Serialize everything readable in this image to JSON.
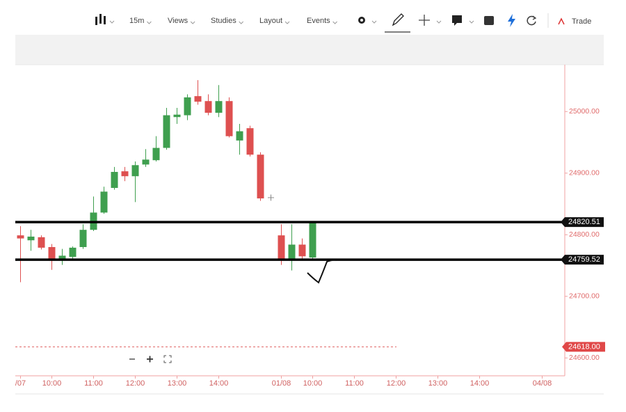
{
  "toolbar": {
    "items": [
      "15m",
      "Views",
      "Studies",
      "Layout",
      "Events"
    ],
    "trade": "Trade"
  },
  "chart_data": {
    "type": "candlestick",
    "categories": [
      "/07",
      null,
      null,
      "10:00",
      null,
      null,
      null,
      "11:00",
      null,
      null,
      null,
      "12:00",
      null,
      null,
      null,
      "13:00",
      null,
      null,
      null,
      "14:00",
      null,
      null,
      null,
      null,
      null,
      "01/08",
      null,
      null,
      "10:00",
      null,
      null,
      null,
      "11:00",
      null,
      null,
      null,
      "12:00",
      null,
      null,
      null,
      "13:00",
      null,
      null,
      null,
      "14:00",
      null,
      null,
      null,
      null,
      null,
      "04/08",
      null,
      null
    ],
    "open": [
      24799,
      24791,
      24796,
      24780,
      24759,
      24764,
      24780,
      24808,
      24836,
      24876,
      24903,
      24895,
      24914,
      24921,
      24941,
      24991,
      24994,
      25025,
      25017,
      24998,
      25017,
      24953,
      24973,
      24930,
      null,
      24799,
      24760,
      24784,
      24763,
      null,
      null,
      null,
      null,
      null,
      null,
      null,
      null,
      null,
      null,
      null,
      null,
      null,
      null,
      null,
      null,
      null,
      null,
      null,
      null,
      null,
      null,
      null,
      null
    ],
    "high": [
      24814,
      24808,
      24799,
      24785,
      24777,
      24781,
      24817,
      24862,
      24878,
      24910,
      24910,
      24919,
      24939,
      24960,
      25006,
      25006,
      25028,
      25051,
      25028,
      25043,
      25023,
      24980,
      24977,
      24934,
      null,
      24817,
      24817,
      24794,
      24821,
      null,
      null,
      null,
      null,
      null,
      null,
      null,
      null,
      null,
      null,
      null,
      null,
      null,
      null,
      null,
      null,
      null,
      null,
      null,
      null,
      null,
      null,
      null,
      null
    ],
    "low": [
      24723,
      24774,
      24776,
      24743,
      24751,
      24760,
      24777,
      24806,
      24834,
      24873,
      24887,
      24853,
      24910,
      24919,
      24938,
      24980,
      24986,
      25011,
      24994,
      24991,
      24958,
      24930,
      24927,
      24855,
      null,
      24751,
      24742,
      24760,
      24760,
      null,
      null,
      null,
      null,
      null,
      null,
      null,
      null,
      null,
      null,
      null,
      null,
      null,
      null,
      null,
      null,
      null,
      null,
      null,
      null,
      null,
      null,
      null,
      null
    ],
    "close": [
      24794,
      24797,
      24779,
      24759,
      24766,
      24779,
      24808,
      24836,
      24870,
      24902,
      24895,
      24913,
      24922,
      24941,
      24994,
      24995,
      25023,
      25016,
      24998,
      25017,
      24960,
      24968,
      24930,
      24859,
      null,
      24760,
      24784,
      24765,
      24819,
      null,
      null,
      null,
      null,
      null,
      null,
      null,
      null,
      null,
      null,
      null,
      null,
      null,
      null,
      null,
      null,
      null,
      null,
      null,
      null,
      null,
      null,
      null,
      null
    ],
    "up_color": "#3f9f4f",
    "down_color": "#de5050",
    "ylim": [
      24571,
      25076
    ],
    "yticks": [
      {
        "value": 24600,
        "label": "24600.00"
      },
      {
        "value": 24700,
        "label": "24700.00"
      },
      {
        "value": 24800,
        "label": "24800.00"
      },
      {
        "value": 24900,
        "label": "24900.00"
      },
      {
        "value": 25000,
        "label": "25000.00"
      }
    ],
    "levels": [
      24820.51,
      24759.52
    ],
    "alert_level": {
      "value": 24618,
      "label": "24618.00"
    }
  }
}
